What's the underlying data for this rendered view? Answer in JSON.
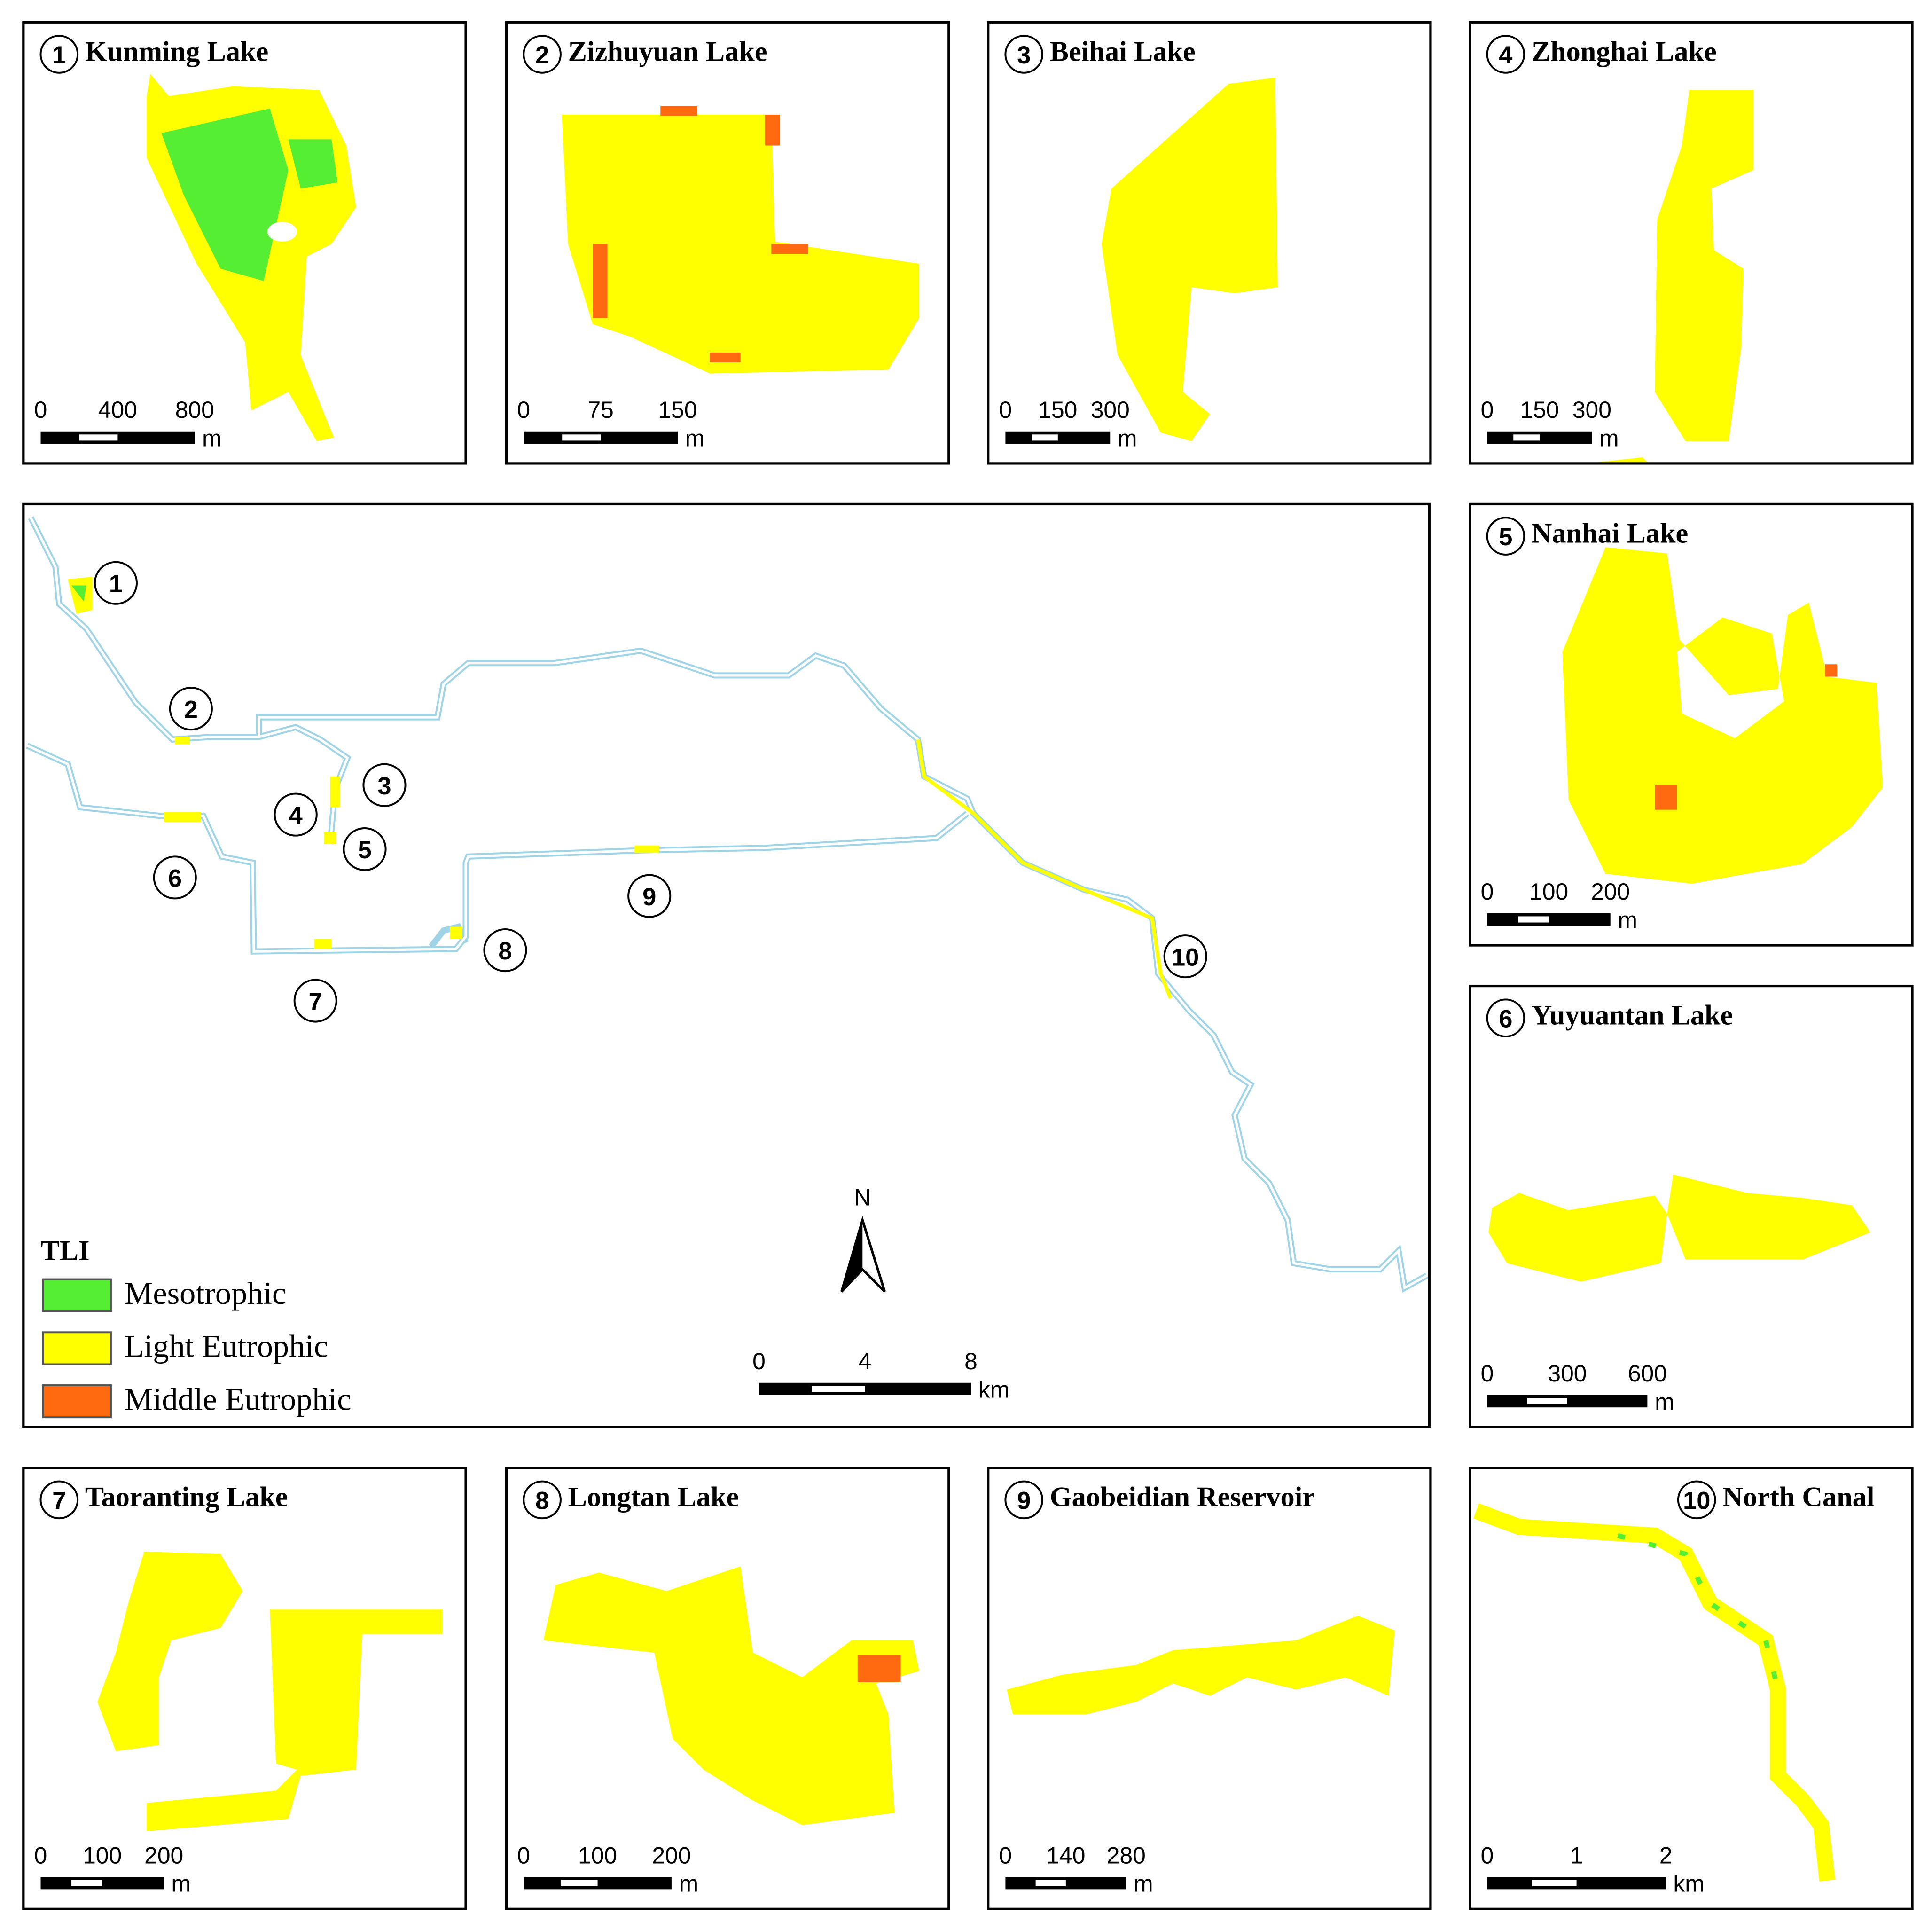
{
  "panels": [
    {
      "number": "1",
      "title": "Kunming Lake",
      "scale_labels": [
        0,
        400,
        800
      ],
      "unit": "m"
    },
    {
      "number": "2",
      "title": "Zizhuyuan Lake",
      "scale_labels": [
        0,
        75,
        150
      ],
      "unit": "m"
    },
    {
      "number": "3",
      "title": "Beihai Lake",
      "scale_labels": [
        0,
        150,
        300
      ],
      "unit": "m"
    },
    {
      "number": "4",
      "title": "Zhonghai Lake",
      "scale_labels": [
        0,
        150,
        300
      ],
      "unit": "m"
    },
    {
      "number": "5",
      "title": "Nanhai Lake",
      "scale_labels": [
        0,
        100,
        200
      ],
      "unit": "m"
    },
    {
      "number": "6",
      "title": "Yuyuantan Lake",
      "scale_labels": [
        0,
        300,
        600
      ],
      "unit": "m"
    },
    {
      "number": "7",
      "title": "Taoranting Lake",
      "scale_labels": [
        0,
        100,
        200
      ],
      "unit": "m"
    },
    {
      "number": "8",
      "title": "Longtan Lake",
      "scale_labels": [
        0,
        100,
        200
      ],
      "unit": "m"
    },
    {
      "number": "9",
      "title": "Gaobeidian Reservoir",
      "scale_labels": [
        0,
        140,
        280
      ],
      "unit": "m"
    },
    {
      "number": "10",
      "title": "North Canal",
      "scale_labels": [
        0,
        1,
        2
      ],
      "unit": "km"
    }
  ],
  "overview": {
    "markers": [
      "1",
      "2",
      "3",
      "4",
      "5",
      "6",
      "7",
      "8",
      "9",
      "10"
    ],
    "north": "N",
    "scale_labels": [
      0,
      4,
      8
    ],
    "unit": "km"
  },
  "legend": {
    "title": "TLI",
    "items": [
      {
        "label": "Mesotrophic",
        "color": "#55ee33"
      },
      {
        "label": "Light Eutrophic",
        "color": "#ffff00"
      },
      {
        "label": "Middle Eutrophic",
        "color": "#ff6a10"
      }
    ]
  }
}
